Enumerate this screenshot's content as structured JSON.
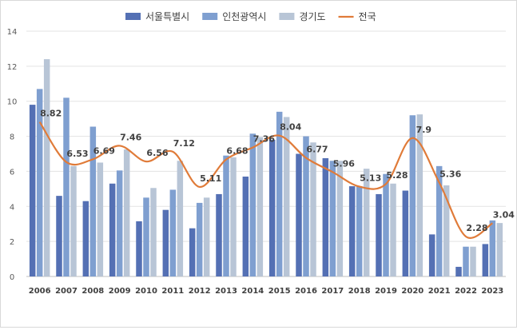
{
  "chart_data": {
    "type": "bar",
    "categories": [
      "2006",
      "2007",
      "2008",
      "2009",
      "2010",
      "2011",
      "2012",
      "2013",
      "2014",
      "2015",
      "2016",
      "2017",
      "2018",
      "2019",
      "2020",
      "2021",
      "2022",
      "2023"
    ],
    "ylim": [
      0,
      14
    ],
    "yticks": [
      0,
      2,
      4,
      6,
      8,
      10,
      12,
      14
    ],
    "grid": true,
    "legend_position": "top",
    "series": [
      {
        "name": "서울특별시",
        "kind": "bar",
        "color": "#5470b4",
        "values": [
          9.8,
          4.6,
          4.3,
          5.3,
          3.15,
          3.8,
          2.75,
          4.7,
          5.7,
          7.8,
          7.0,
          6.75,
          5.15,
          4.7,
          4.9,
          2.4,
          0.55,
          1.85
        ]
      },
      {
        "name": "인천광역시",
        "kind": "bar",
        "color": "#7f9fd0",
        "values": [
          10.7,
          10.2,
          8.55,
          6.05,
          4.5,
          4.95,
          4.2,
          6.9,
          8.15,
          9.4,
          8.0,
          6.6,
          5.15,
          5.85,
          9.2,
          6.3,
          1.7,
          3.2
        ]
      },
      {
        "name": "경기도",
        "kind": "bar",
        "color": "#b8c5d6",
        "values": [
          12.4,
          6.3,
          6.5,
          7.25,
          5.05,
          6.6,
          4.5,
          6.8,
          7.95,
          9.1,
          7.65,
          6.6,
          6.15,
          5.3,
          9.25,
          5.2,
          1.7,
          3.05
        ]
      },
      {
        "name": "전국",
        "kind": "line",
        "color": "#e07b39",
        "values": [
          8.82,
          6.53,
          6.69,
          7.46,
          6.56,
          7.12,
          5.11,
          6.68,
          7.36,
          8.04,
          6.77,
          5.96,
          5.13,
          5.28,
          7.9,
          5.36,
          2.28,
          3.04
        ],
        "labels": [
          "8.82",
          "6.53",
          "6.69",
          "7.46",
          "6.56",
          "7.12",
          "5.11",
          "6.68",
          "7.36",
          "8.04",
          "6.77",
          "5.96",
          "5.13",
          "5.28",
          "7.9",
          "5.36",
          "2.28",
          "3.04"
        ]
      }
    ]
  }
}
